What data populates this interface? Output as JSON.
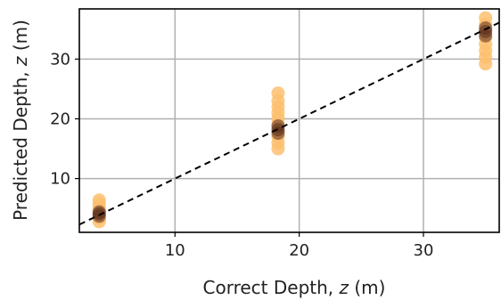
{
  "chart_data": {
    "type": "scatter",
    "title": "",
    "xlabel": "Correct Depth, z (m)",
    "ylabel": "Predicted Depth, z (m)",
    "xlim": [
      2.3,
      36.1
    ],
    "ylim": [
      1.0,
      38.4
    ],
    "grid": true,
    "xticks": [
      10,
      20,
      30
    ],
    "yticks": [
      10,
      20,
      30
    ],
    "reference_line": {
      "style": "dashed",
      "color": "#000000",
      "x": [
        2.3,
        36.1
      ],
      "y": [
        2.3,
        36.1
      ]
    },
    "series": [
      {
        "color": "#fdbf6f",
        "points": [
          {
            "x": 3.9,
            "y": 2.8
          },
          {
            "x": 3.9,
            "y": 3.4
          },
          {
            "x": 3.9,
            "y": 4.0
          },
          {
            "x": 3.9,
            "y": 4.6
          },
          {
            "x": 3.9,
            "y": 5.2
          },
          {
            "x": 3.9,
            "y": 5.8
          },
          {
            "x": 3.9,
            "y": 6.4
          },
          {
            "x": 18.3,
            "y": 15.0
          },
          {
            "x": 18.3,
            "y": 16.0
          },
          {
            "x": 18.3,
            "y": 17.0
          },
          {
            "x": 18.3,
            "y": 18.0
          },
          {
            "x": 18.3,
            "y": 19.0
          },
          {
            "x": 18.3,
            "y": 20.0
          },
          {
            "x": 18.3,
            "y": 21.0
          },
          {
            "x": 18.3,
            "y": 22.0
          },
          {
            "x": 18.3,
            "y": 23.0
          },
          {
            "x": 18.3,
            "y": 24.3
          },
          {
            "x": 35.0,
            "y": 29.2
          },
          {
            "x": 35.0,
            "y": 30.3
          },
          {
            "x": 35.0,
            "y": 31.4
          },
          {
            "x": 35.0,
            "y": 32.5
          },
          {
            "x": 35.0,
            "y": 33.6
          },
          {
            "x": 35.0,
            "y": 34.7
          },
          {
            "x": 35.0,
            "y": 35.8
          },
          {
            "x": 35.0,
            "y": 36.9
          }
        ]
      },
      {
        "color": "#5a2b1c",
        "points": [
          {
            "x": 3.9,
            "y": 3.7
          },
          {
            "x": 3.9,
            "y": 4.1
          },
          {
            "x": 3.9,
            "y": 4.4
          },
          {
            "x": 18.3,
            "y": 17.6
          },
          {
            "x": 18.3,
            "y": 18.2
          },
          {
            "x": 18.3,
            "y": 18.8
          },
          {
            "x": 35.0,
            "y": 33.9
          },
          {
            "x": 35.0,
            "y": 34.6
          },
          {
            "x": 35.0,
            "y": 35.2
          }
        ]
      }
    ]
  },
  "labels": {
    "xlabel_main": "Correct Depth, ",
    "xlabel_var": "z",
    "xlabel_unit": " (m)",
    "ylabel_main": "Predicted Depth, ",
    "ylabel_var": "z",
    "ylabel_unit": " (m)"
  }
}
